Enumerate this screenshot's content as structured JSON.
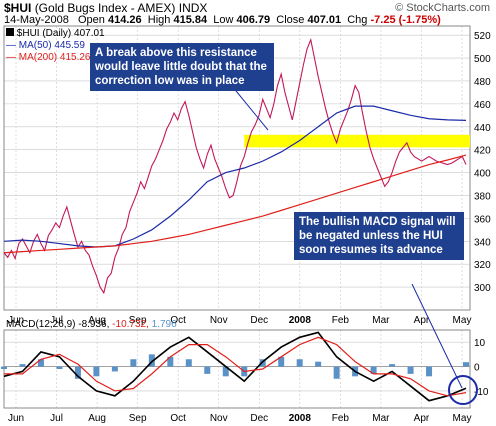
{
  "header": {
    "symbol": "$HUI",
    "name": "(Gold Bugs Index - AMEX)",
    "exchange": "INDX",
    "copyright": "© StockCharts.com",
    "date": "14-May-2008",
    "open_label": "Open",
    "open": "414.26",
    "high_label": "High",
    "high": "415.84",
    "low_label": "Low",
    "low": "406.79",
    "close_label": "Close",
    "close": "407.01",
    "chg_label": "Chg",
    "chg": "-7.25 (-1.75%)"
  },
  "legend": {
    "price": "$HUI (Daily) 407.01",
    "ma50": "MA(50) 445.59",
    "ma200": "MA(200) 415.26",
    "macd_label": "MACD(12,26,9)",
    "macd_v1": "-8.936,",
    "macd_v2": "-10.732,",
    "macd_v3": "1.796"
  },
  "annotations": {
    "resistance": "A break above this resistance would leave little doubt that the correction low was in place",
    "macd": "The bullish MACD signal will be negated unless the HUI soon resumes its advance"
  },
  "colors": {
    "price": "#c2185b",
    "ma50": "#1a2aa8",
    "ma200": "#e0201a",
    "resistance": "#ffff00",
    "callout": "#1f3f8f",
    "histogram": "#5a92c8",
    "macd_signal": "#e0201a",
    "grid": "#c8c8c8"
  },
  "chart_data": [
    {
      "type": "line",
      "title": "$HUI (Daily)",
      "x_ticks": [
        "Jun",
        "Jul",
        "Aug",
        "Sep",
        "Oct",
        "Nov",
        "Dec",
        "2008",
        "Feb",
        "Mar",
        "Apr",
        "May"
      ],
      "y_ticks": [
        300,
        320,
        340,
        360,
        380,
        400,
        420,
        440,
        460,
        480,
        500,
        520
      ],
      "ylim": [
        280,
        528
      ],
      "resistance_band": [
        422,
        433
      ],
      "series": [
        {
          "name": "$HUI (Daily)",
          "x": [
            0,
            2,
            4,
            6,
            8,
            10,
            12,
            14,
            16,
            18,
            20,
            22,
            24,
            26,
            28,
            30,
            32,
            34,
            36,
            38,
            40,
            42,
            44,
            46,
            48,
            50,
            52,
            54,
            56,
            58,
            60,
            62,
            64,
            66,
            68,
            70,
            72,
            74,
            76,
            78,
            80,
            82,
            84,
            86,
            88,
            90,
            92,
            94,
            96,
            98,
            100,
            102,
            104,
            106,
            108,
            110,
            112,
            114,
            116,
            118,
            120,
            122,
            124,
            126,
            128,
            130,
            132,
            134,
            136,
            138,
            140,
            142,
            144,
            146,
            148,
            150,
            152,
            154,
            156,
            158,
            160,
            162,
            164,
            166,
            168,
            170,
            172,
            174,
            176,
            178,
            180,
            182,
            184,
            186,
            188,
            190,
            192,
            194,
            196,
            198,
            200,
            202,
            204,
            206,
            208,
            210,
            212,
            214,
            216,
            218,
            220,
            222,
            224,
            226,
            228,
            230,
            232,
            234,
            236,
            238,
            240,
            242,
            244,
            246,
            248,
            250
          ],
          "values": [
            330,
            326,
            332,
            325,
            338,
            342,
            336,
            330,
            340,
            346,
            338,
            332,
            345,
            350,
            356,
            352,
            362,
            370,
            358,
            346,
            335,
            340,
            332,
            328,
            318,
            310,
            300,
            295,
            308,
            312,
            326,
            334,
            346,
            352,
            366,
            374,
            382,
            392,
            386,
            396,
            406,
            412,
            420,
            428,
            438,
            444,
            452,
            446,
            456,
            462,
            450,
            436,
            422,
            412,
            404,
            416,
            424,
            412,
            404,
            396,
            386,
            378,
            380,
            392,
            406,
            414,
            426,
            436,
            442,
            450,
            464,
            456,
            448,
            460,
            476,
            486,
            470,
            458,
            446,
            462,
            478,
            494,
            508,
            516,
            500,
            484,
            470,
            456,
            444,
            434,
            426,
            438,
            446,
            454,
            464,
            476,
            470,
            452,
            436,
            422,
            412,
            404,
            396,
            388,
            392,
            400,
            410,
            418,
            422,
            426,
            418,
            414,
            412,
            410,
            412,
            414,
            412,
            410,
            409,
            408,
            407,
            408,
            410,
            412,
            414,
            407
          ]
        },
        {
          "name": "MA(50)",
          "x": [
            0,
            10,
            20,
            30,
            40,
            50,
            60,
            70,
            80,
            90,
            100,
            110,
            120,
            130,
            140,
            150,
            160,
            170,
            180,
            190,
            200,
            210,
            220,
            230,
            240,
            250
          ],
          "values": [
            340,
            341,
            340,
            338,
            336,
            335,
            336,
            342,
            350,
            362,
            376,
            392,
            400,
            404,
            410,
            418,
            428,
            440,
            452,
            458,
            458,
            454,
            450,
            447,
            446,
            445.6
          ]
        },
        {
          "name": "MA(200)",
          "x": [
            0,
            10,
            20,
            30,
            40,
            50,
            60,
            70,
            80,
            90,
            100,
            110,
            120,
            130,
            140,
            150,
            160,
            170,
            180,
            190,
            200,
            210,
            220,
            230,
            240,
            250
          ],
          "values": [
            330,
            331,
            332,
            333,
            334,
            335,
            336,
            338,
            340,
            343,
            346,
            350,
            354,
            358,
            362,
            367,
            372,
            377,
            382,
            387,
            392,
            397,
            402,
            407,
            411,
            415.3
          ]
        }
      ]
    },
    {
      "type": "line",
      "title": "MACD(12,26,9)",
      "x_ticks": [
        "Jun",
        "Jul",
        "Aug",
        "Sep",
        "Oct",
        "Nov",
        "Dec",
        "2008",
        "Feb",
        "Mar",
        "Apr",
        "May"
      ],
      "y_ticks": [
        -10,
        0,
        10
      ],
      "ylim": [
        -17,
        15
      ],
      "series": [
        {
          "name": "MACD",
          "x": [
            0,
            10,
            20,
            30,
            40,
            50,
            60,
            70,
            80,
            90,
            100,
            110,
            120,
            130,
            140,
            150,
            160,
            170,
            180,
            190,
            200,
            210,
            220,
            230,
            240,
            250
          ],
          "values": [
            -4,
            -2,
            6,
            4,
            -4,
            -10,
            -12,
            -6,
            2,
            8,
            12,
            6,
            0,
            -6,
            2,
            8,
            12,
            14,
            4,
            -2,
            -6,
            -2,
            -8,
            -14,
            -12,
            -8.9
          ]
        },
        {
          "name": "Signal",
          "x": [
            0,
            10,
            20,
            30,
            40,
            50,
            60,
            70,
            80,
            90,
            100,
            110,
            120,
            130,
            140,
            150,
            160,
            170,
            180,
            190,
            200,
            210,
            220,
            230,
            240,
            250
          ],
          "values": [
            -3,
            -3,
            3,
            5,
            1,
            -6,
            -10,
            -9,
            -3,
            4,
            9,
            9,
            4,
            -2,
            -1,
            4,
            9,
            12,
            9,
            2,
            -3,
            -3,
            -5,
            -10,
            -12,
            -10.7
          ]
        },
        {
          "name": "Histogram",
          "x": [
            0,
            10,
            20,
            30,
            40,
            50,
            60,
            70,
            80,
            90,
            100,
            110,
            120,
            130,
            140,
            150,
            160,
            170,
            180,
            190,
            200,
            210,
            220,
            230,
            240,
            250
          ],
          "values": [
            -1,
            1,
            3,
            -1,
            -5,
            -4,
            -2,
            3,
            5,
            4,
            3,
            -3,
            -4,
            -4,
            3,
            4,
            3,
            2,
            -5,
            -4,
            -3,
            1,
            -3,
            -4,
            0,
            1.8
          ]
        }
      ]
    }
  ]
}
